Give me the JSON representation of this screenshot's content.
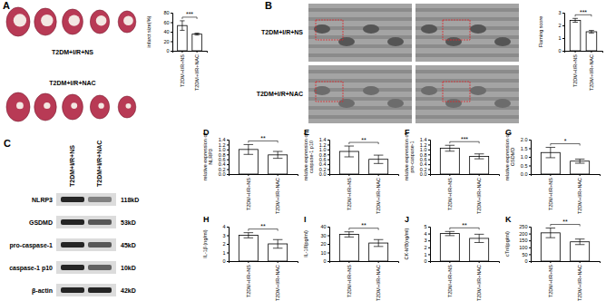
{
  "chart_data": [
    {
      "type": "bar",
      "ylabel": "infarct size(%)",
      "categories": [
        "T2DM+I/R+NS",
        "T2DM+I/R+NAC"
      ],
      "values": [
        53,
        35
      ],
      "errors": [
        10,
        2
      ],
      "ylim": [
        0,
        80
      ],
      "yticks": [
        0,
        20,
        40,
        60,
        80
      ],
      "color": "#ffffff",
      "annotations": [
        "***"
      ]
    },
    {
      "type": "bar",
      "ylabel": "Flaming score",
      "categories": [
        "T2DM+I/R+NS",
        "T2DM+I/R+NAC"
      ],
      "values": [
        2.4,
        1.5
      ],
      "errors": [
        0.15,
        0.1
      ],
      "ylim": [
        0,
        3
      ],
      "yticks": [
        0,
        1,
        2,
        3
      ],
      "color": "#ffffff",
      "annotations": [
        "***"
      ]
    },
    {
      "type": "bar",
      "ylabel": "relative expression of NLRP3",
      "categories": [
        "T2DM+I/R+NS",
        "T2DM+I/R+NAC"
      ],
      "values": [
        1.0,
        0.78
      ],
      "errors": [
        0.2,
        0.14
      ],
      "ylim": [
        0,
        1.4
      ],
      "yticks": [
        {
          "value": 0,
          "label": "0.0"
        },
        0.2,
        0.4,
        0.6,
        0.8,
        {
          "value": 1,
          "label": "1.0"
        },
        1.2,
        1.4
      ],
      "color": "#ffffff",
      "annotations": [
        "**"
      ]
    },
    {
      "type": "bar",
      "ylabel": "relative expression of caspase-1 p10",
      "categories": [
        "T2DM+I/R+NS",
        "T2DM+I/R+NAC"
      ],
      "values": [
        0.92,
        0.6
      ],
      "errors": [
        0.22,
        0.17
      ],
      "ylim": [
        0,
        1.4
      ],
      "yticks": [
        {
          "value": 0,
          "label": "0.0"
        },
        0.2,
        0.4,
        0.6,
        0.8,
        {
          "value": 1,
          "label": "1.0"
        },
        1.2,
        1.4
      ],
      "color": "#ffffff",
      "annotations": [
        "**"
      ]
    },
    {
      "type": "bar",
      "ylabel": "relative expression of pro-caspase-1",
      "categories": [
        "T2DM+I/R+NS",
        "T2DM+I/R+NAC"
      ],
      "values": [
        1.05,
        0.72
      ],
      "errors": [
        0.12,
        0.1
      ],
      "ylim": [
        0,
        1.4
      ],
      "yticks": [
        {
          "value": 0,
          "label": "0.0"
        },
        0.2,
        0.4,
        0.6,
        0.8,
        {
          "value": 1,
          "label": "1.0"
        },
        1.2,
        1.4
      ],
      "color": "#ffffff",
      "annotations": [
        "***"
      ]
    },
    {
      "type": "bar",
      "ylabel": "relative expression of GSDMD",
      "categories": [
        "T2DM+I/R+NS",
        "T2DM+I/R+NAC"
      ],
      "values": [
        1.25,
        0.75
      ],
      "errors": [
        0.3,
        0.12
      ],
      "ylim": [
        0,
        2
      ],
      "yticks": [
        {
          "value": 0,
          "label": "0.0"
        },
        0.5,
        {
          "value": 1,
          "label": "1.0"
        },
        1.5,
        {
          "value": 2,
          "label": "2.0"
        }
      ],
      "color": "#ffffff",
      "annotations": [
        "*"
      ]
    },
    {
      "type": "bar",
      "ylabel": "IL-1β (ng/ml)",
      "categories": [
        "T2DM+I/R+NS",
        "T2DM+I/R+NAC"
      ],
      "values": [
        3.0,
        2.0
      ],
      "errors": [
        0.3,
        0.5
      ],
      "ylim": [
        0,
        4
      ],
      "yticks": [
        0,
        1,
        2,
        3,
        4
      ],
      "color": "#ffffff",
      "annotations": [
        "**"
      ]
    },
    {
      "type": "bar",
      "ylabel": "IL-18(pg/ml)",
      "categories": [
        "T2DM+I/R+NS",
        "T2DM+I/R+NAC"
      ],
      "values": [
        31,
        21
      ],
      "errors": [
        3,
        4
      ],
      "ylim": [
        0,
        40
      ],
      "yticks": [
        0,
        10,
        20,
        30,
        40
      ],
      "color": "#ffffff",
      "annotations": [
        "**"
      ]
    },
    {
      "type": "bar",
      "ylabel": "CK-MB(ng/ml)",
      "categories": [
        "T2DM+I/R+NS",
        "T2DM+I/R+NAC"
      ],
      "values": [
        4.0,
        3.3
      ],
      "errors": [
        0.3,
        0.6
      ],
      "ylim": [
        0,
        5
      ],
      "yticks": [
        0,
        1,
        2,
        3,
        4,
        5
      ],
      "color": "#ffffff",
      "annotations": [
        "**"
      ]
    },
    {
      "type": "bar",
      "ylabel": "cTnI(pg/ml)",
      "categories": [
        "T2DM+I/R+NS",
        "T2DM+I/R+NAC"
      ],
      "values": [
        205,
        140
      ],
      "errors": [
        35,
        20
      ],
      "ylim": [
        0,
        250
      ],
      "yticks": [
        0,
        50,
        100,
        150,
        200,
        250
      ],
      "color": "#ffffff",
      "annotations": [
        "**"
      ]
    }
  ],
  "figure": {
    "panel_a": {
      "label": "A",
      "groups": [
        "T2DM+I/R+NS",
        "T2DM+I/R+NAC"
      ]
    },
    "panel_b": {
      "label": "B",
      "groups": [
        "T2DM+I/R+NS",
        "T2DM+I/R+NAC"
      ]
    },
    "panel_c": {
      "label": "C",
      "lanes": [
        "T2DM+I/R+NS",
        "T2DM+I/R+NAC"
      ],
      "bands": [
        {
          "name": "NLRP3",
          "size": "118kD"
        },
        {
          "name": "GSDMD",
          "size": "53kD"
        },
        {
          "name": "pro-caspase-1",
          "size": "45kD"
        },
        {
          "name": "caspase-1 p10",
          "size": "10kD"
        },
        {
          "name": "β-actin",
          "size": "42kD"
        }
      ]
    },
    "chart_labels": [
      "D",
      "E",
      "F",
      "G",
      "H",
      "I",
      "J",
      "K"
    ]
  }
}
